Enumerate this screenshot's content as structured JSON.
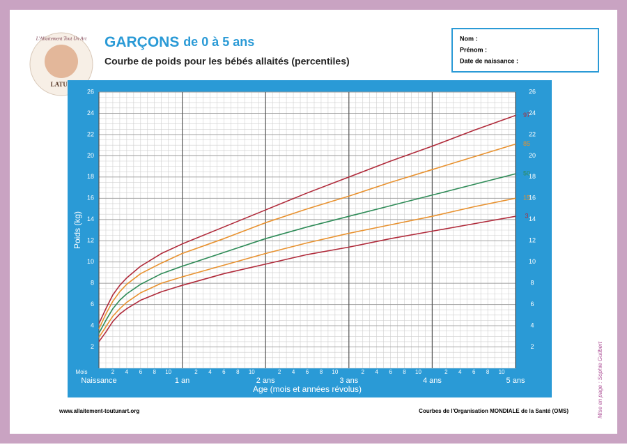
{
  "header": {
    "title_main": "GARÇONS",
    "title_rest": "de 0 à 5 ans",
    "subtitle": "Courbe de poids pour les bébés allaités (percentiles)",
    "logo_top": "L'Allaitement Tout Un Art",
    "logo_name": "LATUA"
  },
  "form": {
    "fields": [
      "Nom :",
      "Prénom :",
      "Date de naissance :"
    ]
  },
  "footer": {
    "left": "www.allaitement-toutunart.org",
    "right": "Courbes de l'Organisation MONDIALE de la Santé (OMS)",
    "side": "Mise en page : Sophie Guilbert"
  },
  "chart_data": {
    "type": "line",
    "x_label": "Age (mois et années révolus)",
    "y_label": "Poids (kg)",
    "x_unit_label": "Mois",
    "x": [
      0,
      1,
      2,
      3,
      4,
      6,
      9,
      12,
      18,
      24,
      30,
      36,
      42,
      48,
      54,
      60
    ],
    "series": [
      {
        "name": "97",
        "color": "#b02a3a",
        "values": [
          4.2,
          5.6,
          6.9,
          7.8,
          8.5,
          9.6,
          10.8,
          11.7,
          13.3,
          14.9,
          16.5,
          18.0,
          19.5,
          20.9,
          22.4,
          23.8
        ]
      },
      {
        "name": "85",
        "color": "#e8912e",
        "values": [
          3.7,
          5.1,
          6.3,
          7.2,
          7.9,
          8.9,
          9.9,
          10.8,
          12.2,
          13.7,
          15.0,
          16.2,
          17.5,
          18.7,
          19.9,
          21.1
        ]
      },
      {
        "name": "50",
        "color": "#2e8b57",
        "values": [
          3.3,
          4.5,
          5.6,
          6.4,
          7.0,
          7.9,
          8.9,
          9.6,
          10.9,
          12.2,
          13.3,
          14.3,
          15.3,
          16.3,
          17.3,
          18.3
        ]
      },
      {
        "name": "15",
        "color": "#e8912e",
        "values": [
          2.9,
          3.9,
          4.9,
          5.6,
          6.2,
          7.1,
          8.0,
          8.6,
          9.7,
          10.8,
          11.8,
          12.7,
          13.5,
          14.3,
          15.2,
          16.0
        ]
      },
      {
        "name": "3",
        "color": "#b02a3a",
        "values": [
          2.5,
          3.4,
          4.4,
          5.1,
          5.6,
          6.4,
          7.2,
          7.8,
          8.9,
          9.8,
          10.7,
          11.4,
          12.2,
          12.9,
          13.6,
          14.3
        ]
      }
    ],
    "xlim": [
      0,
      60
    ],
    "ylim": [
      0,
      26
    ],
    "yticks": [
      2,
      4,
      6,
      8,
      10,
      12,
      14,
      16,
      18,
      20,
      22,
      24,
      26
    ],
    "xticks": [
      {
        "value": 0,
        "label": "Naissance"
      },
      {
        "value": 12,
        "label": "1 an"
      },
      {
        "value": 24,
        "label": "2 ans"
      },
      {
        "value": 36,
        "label": "3 ans"
      },
      {
        "value": 48,
        "label": "4 ans"
      },
      {
        "value": 60,
        "label": "5 ans"
      }
    ],
    "xminor_ticks": [
      {
        "value": 2,
        "label": "2"
      },
      {
        "value": 4,
        "label": "4"
      },
      {
        "value": 6,
        "label": "6"
      },
      {
        "value": 8,
        "label": "8"
      },
      {
        "value": 10,
        "label": "10"
      },
      {
        "value": 14,
        "label": "2"
      },
      {
        "value": 16,
        "label": "4"
      },
      {
        "value": 18,
        "label": "6"
      },
      {
        "value": 20,
        "label": "8"
      },
      {
        "value": 22,
        "label": "10"
      },
      {
        "value": 26,
        "label": "2"
      },
      {
        "value": 28,
        "label": "4"
      },
      {
        "value": 30,
        "label": "6"
      },
      {
        "value": 32,
        "label": "8"
      },
      {
        "value": 34,
        "label": "10"
      },
      {
        "value": 38,
        "label": "2"
      },
      {
        "value": 40,
        "label": "4"
      },
      {
        "value": 42,
        "label": "6"
      },
      {
        "value": 44,
        "label": "8"
      },
      {
        "value": 46,
        "label": "10"
      },
      {
        "value": 50,
        "label": "2"
      },
      {
        "value": 52,
        "label": "4"
      },
      {
        "value": 54,
        "label": "6"
      },
      {
        "value": 56,
        "label": "8"
      },
      {
        "value": 58,
        "label": "10"
      }
    ],
    "grid": true
  }
}
